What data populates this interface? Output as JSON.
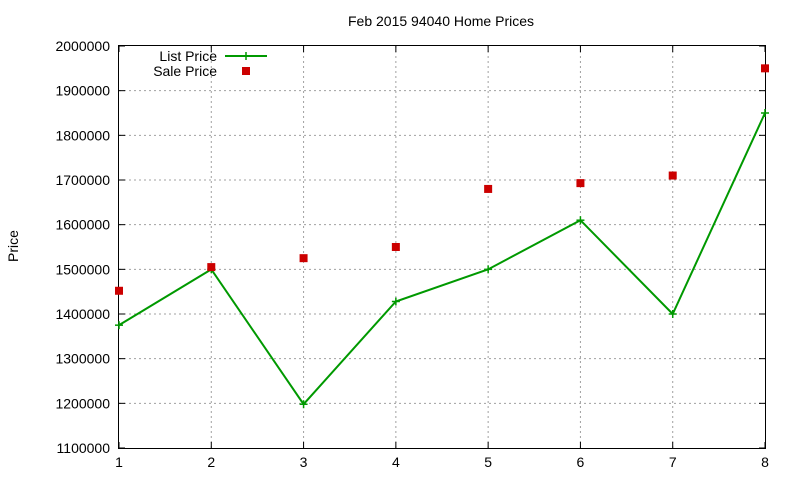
{
  "chart_data": {
    "type": "line",
    "title": "Feb 2015 94040 Home Prices",
    "xlabel": "",
    "ylabel": "Price",
    "xlim": [
      1,
      8
    ],
    "ylim": [
      1100000,
      2000000
    ],
    "x_ticks": [
      "1",
      "2",
      "3",
      "4",
      "5",
      "6",
      "7",
      "8"
    ],
    "y_ticks": [
      "1100000",
      "1200000",
      "1300000",
      "1400000",
      "1500000",
      "1600000",
      "1700000",
      "1800000",
      "1900000",
      "2000000"
    ],
    "grid": true,
    "legend_position": "top-left",
    "series": [
      {
        "name": "List Price",
        "style": "linespoints",
        "color": "#009900",
        "marker": "plus",
        "x": [
          1,
          2,
          3,
          4,
          5,
          6,
          7,
          8
        ],
        "y": [
          1375000,
          1500000,
          1198000,
          1428000,
          1500000,
          1610000,
          1400000,
          1850000
        ]
      },
      {
        "name": "Sale Price",
        "style": "points",
        "color": "#cc0000",
        "marker": "square",
        "x": [
          1,
          2,
          3,
          4,
          5,
          6,
          7,
          8
        ],
        "y": [
          1452000,
          1505000,
          1525000,
          1550000,
          1680000,
          1693000,
          1710000,
          1950000
        ]
      }
    ]
  }
}
